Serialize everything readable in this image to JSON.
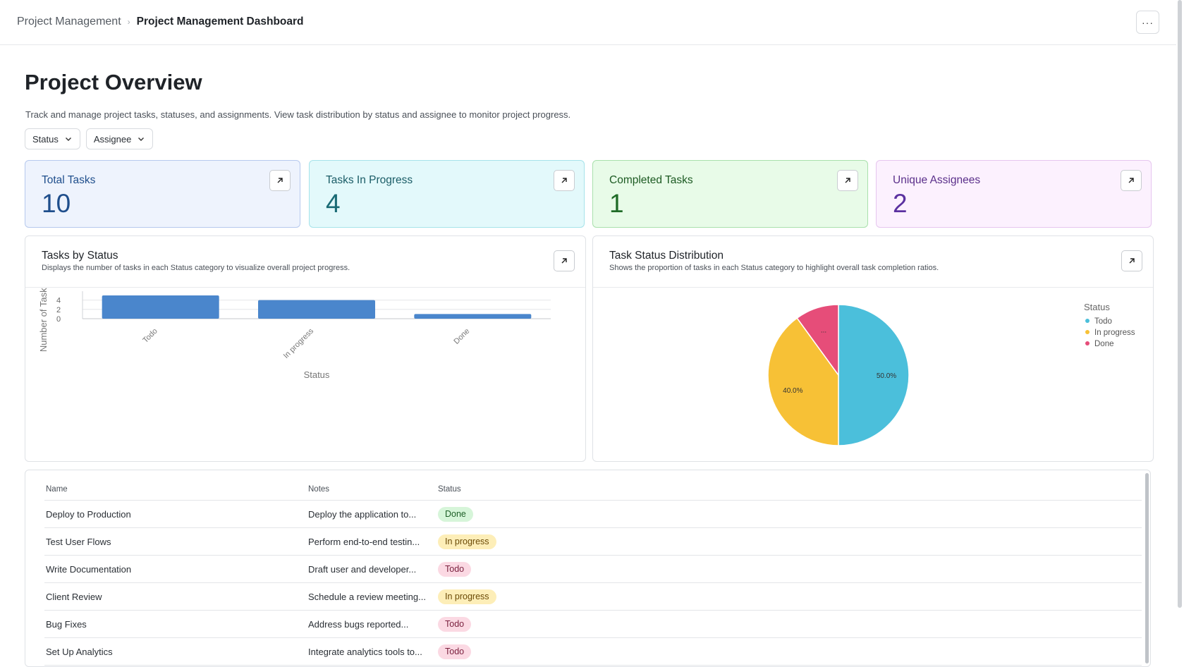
{
  "breadcrumb": {
    "parent": "Project Management",
    "current": "Project Management Dashboard"
  },
  "header": {
    "more_label": "···"
  },
  "page": {
    "title": "Project Overview",
    "description": "Track and manage project tasks, statuses, and assignments. View task distribution by status and assignee to monitor project progress."
  },
  "filters": {
    "status_label": "Status",
    "assignee_label": "Assignee"
  },
  "kpis": [
    {
      "label": "Total Tasks",
      "value": "10",
      "bg": "#eef3fd",
      "border": "#b6c9ee",
      "label_color": "#1f4e8c",
      "value_color": "#1f4e8c"
    },
    {
      "label": "Tasks In Progress",
      "value": "4",
      "bg": "#e3f9fb",
      "border": "#a6e3ea",
      "label_color": "#1a5c66",
      "value_color": "#1a6b75"
    },
    {
      "label": "Completed Tasks",
      "value": "1",
      "bg": "#e8fbe8",
      "border": "#a9e0ac",
      "label_color": "#1c5a22",
      "value_color": "#1f6b27"
    },
    {
      "label": "Unique Assignees",
      "value": "2",
      "bg": "#fcf1fe",
      "border": "#e6c5ef",
      "label_color": "#5a2f8a",
      "value_color": "#5b31a0"
    }
  ],
  "bar_panel": {
    "title": "Tasks by Status",
    "subtitle": "Displays the number of tasks in each Status category to visualize overall project progress."
  },
  "pie_panel": {
    "title": "Task Status Distribution",
    "subtitle": "Shows the proportion of tasks in each Status category to highlight overall task completion ratios."
  },
  "chart_data": [
    {
      "type": "bar",
      "categories": [
        "Todo",
        "In progress",
        "Done"
      ],
      "values": [
        5,
        4,
        1
      ],
      "xlabel": "Status",
      "ylabel": "Number of Tasks",
      "ylim": [
        0,
        5
      ],
      "yticks": [
        0,
        2,
        4
      ],
      "color": "#4a86cc",
      "grid": true
    },
    {
      "type": "pie",
      "categories": [
        "Todo",
        "In progress",
        "Done"
      ],
      "values": [
        50,
        40,
        10
      ],
      "labels": [
        "50.0%",
        "40.0%",
        "..."
      ],
      "colors": [
        "#4bbfdb",
        "#f7c136",
        "#e64d79"
      ],
      "legend_title": "Status",
      "legend": "top-right"
    }
  ],
  "table": {
    "headers": {
      "name": "Name",
      "notes": "Notes",
      "status": "Status"
    },
    "rows": [
      {
        "name": "Deploy to Production",
        "notes": "Deploy the application to...",
        "status": "Done"
      },
      {
        "name": "Test User Flows",
        "notes": "Perform end-to-end testin...",
        "status": "In progress"
      },
      {
        "name": "Write Documentation",
        "notes": "Draft user and developer...",
        "status": "Todo"
      },
      {
        "name": "Client Review",
        "notes": "Schedule a review meeting...",
        "status": "In progress"
      },
      {
        "name": "Bug Fixes",
        "notes": "Address bugs reported...",
        "status": "Todo"
      },
      {
        "name": "Set Up Analytics",
        "notes": "Integrate analytics tools to...",
        "status": "Todo"
      }
    ]
  },
  "badge_colors": {
    "Done": {
      "bg": "#d6f5d9",
      "fg": "#1e5f27"
    },
    "In progress": {
      "bg": "#fdeeb8",
      "fg": "#6b4a06"
    },
    "Todo": {
      "bg": "#fbd9e3",
      "fg": "#7a1f3d"
    }
  },
  "icons": {
    "breadcrumb_separator": "chevron-right-icon",
    "more": "more-horizontal-icon",
    "filter": "chevron-down-icon",
    "expand": "arrow-up-right-icon"
  }
}
